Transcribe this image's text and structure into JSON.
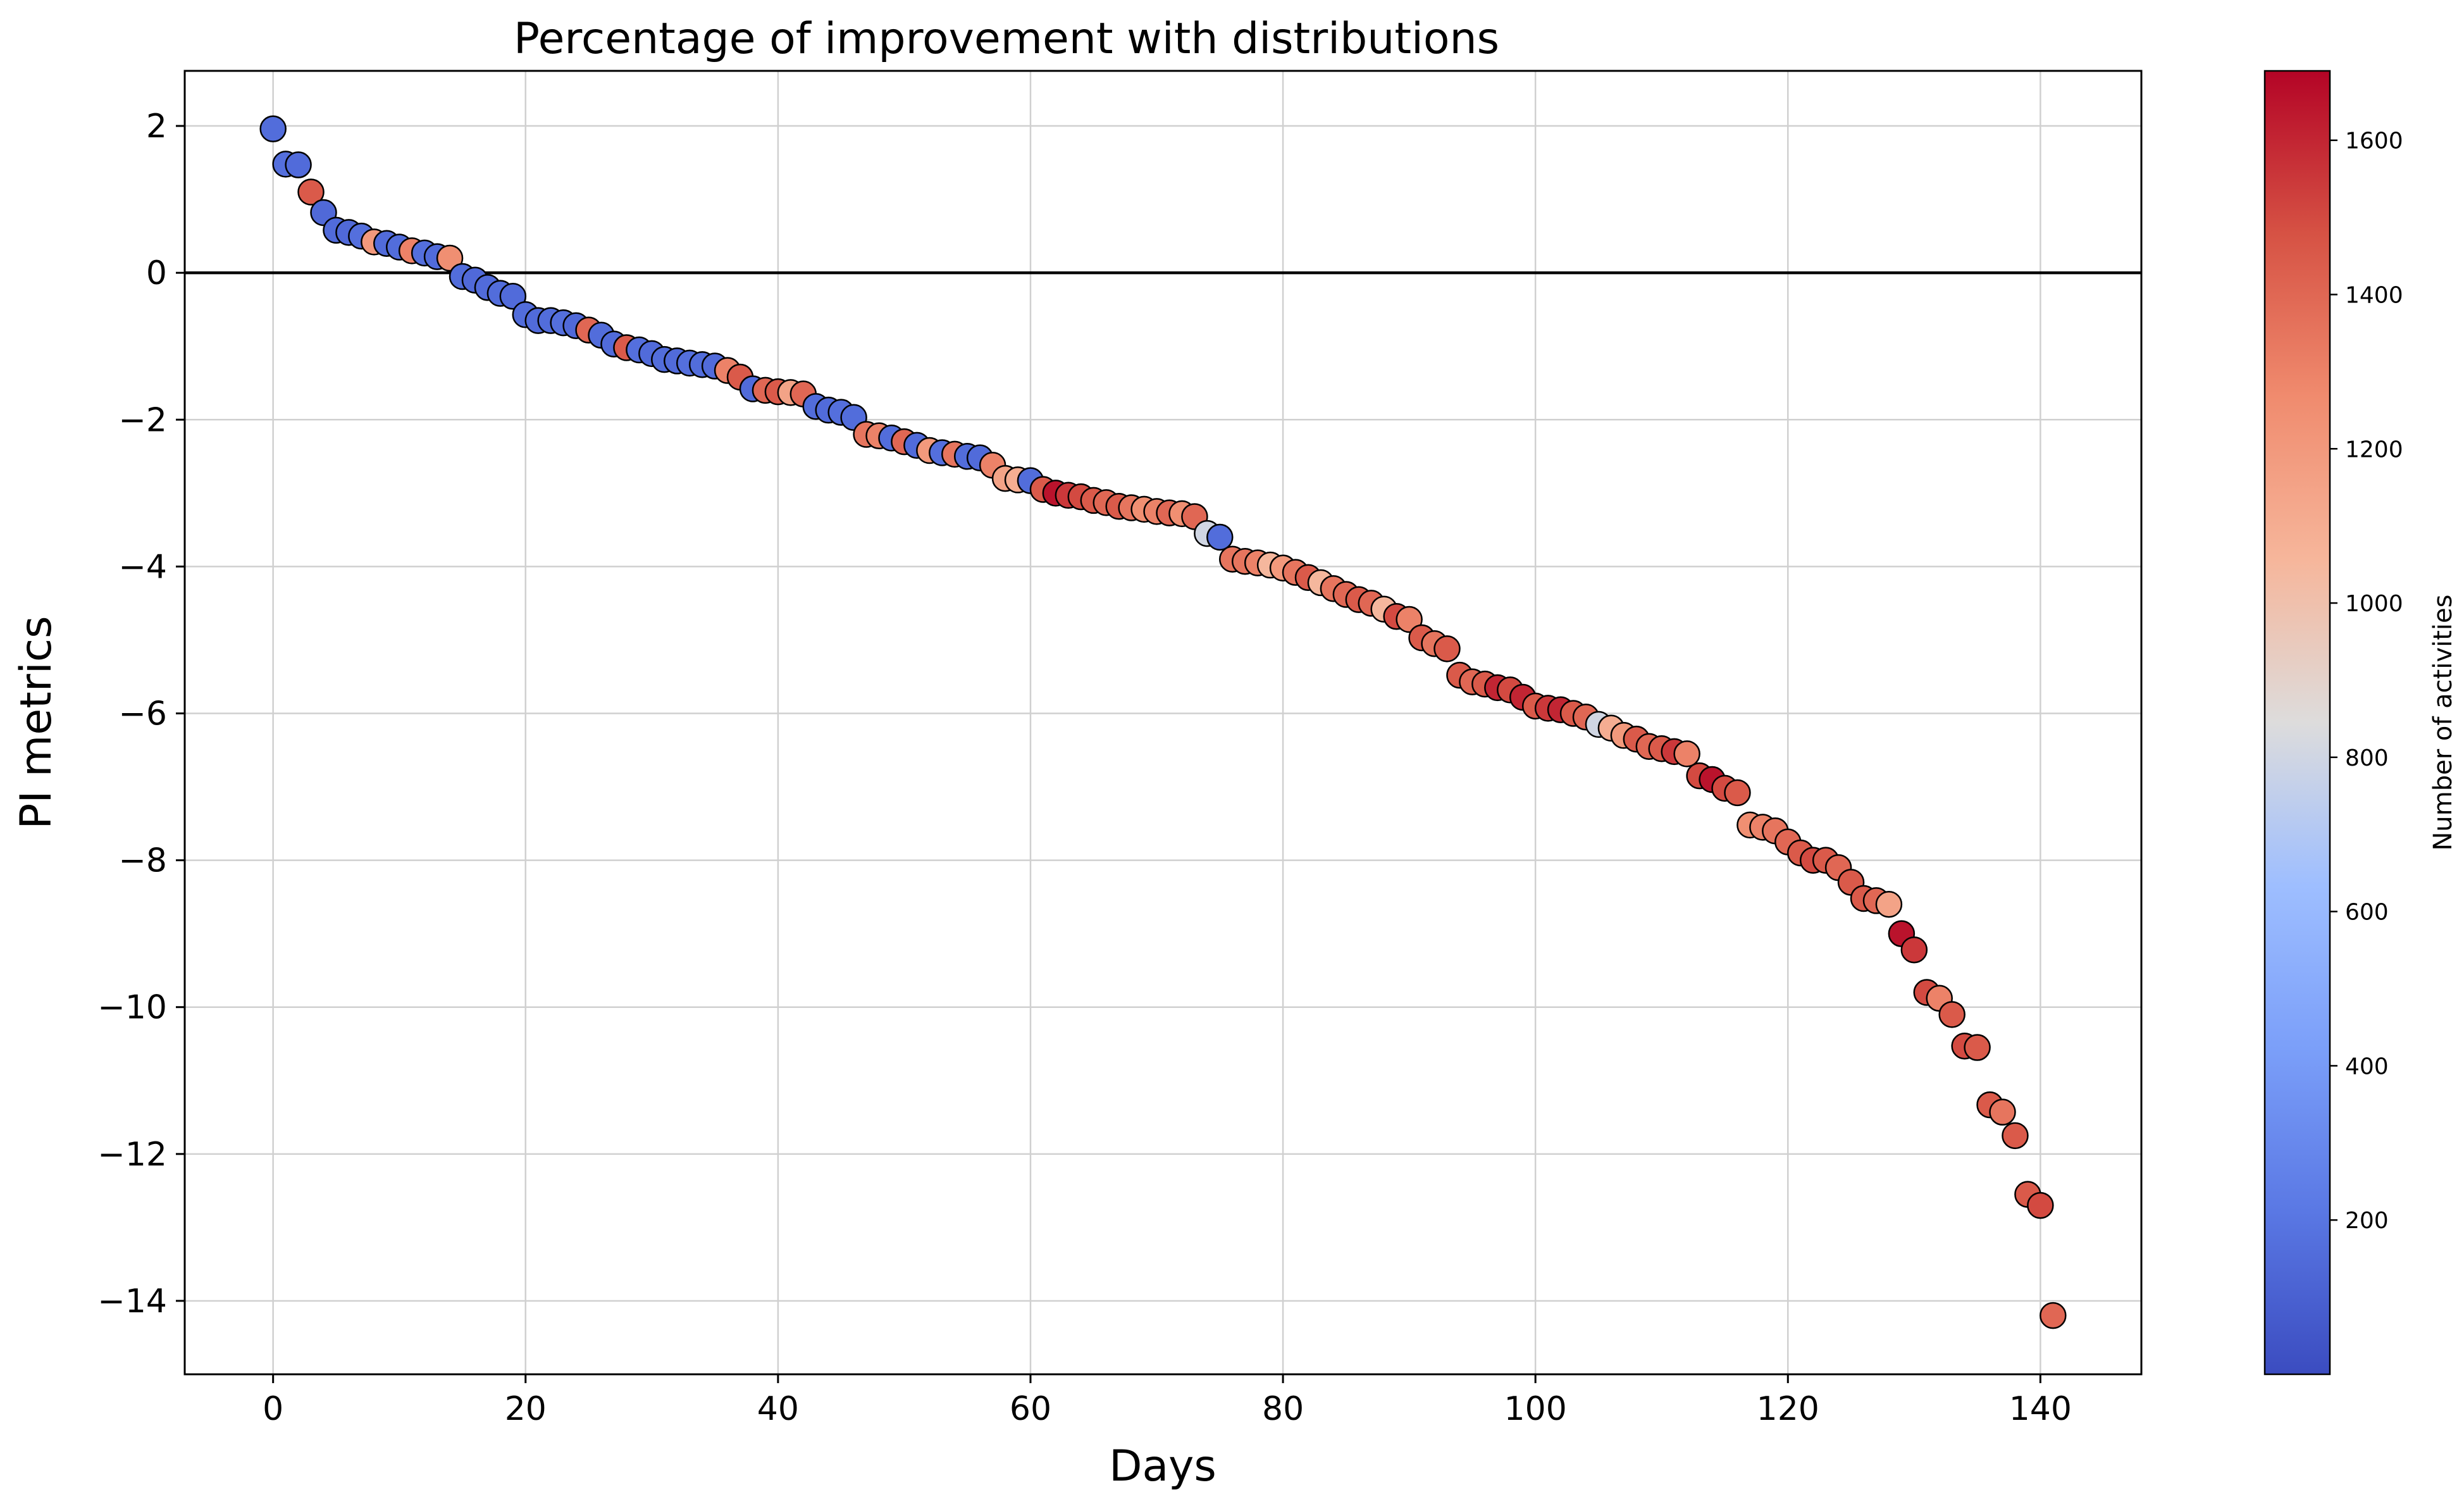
{
  "chart_data": {
    "type": "scatter",
    "title": "Percentage of improvement with distributions",
    "xlabel": "Days",
    "ylabel": "PI metrics",
    "xlim": [
      -7,
      148
    ],
    "ylim": [
      -15,
      2.75
    ],
    "xticks": [
      0,
      20,
      40,
      60,
      80,
      100,
      120,
      140
    ],
    "yticks": [
      2,
      0,
      -2,
      -4,
      -6,
      -8,
      -10,
      -12,
      -14
    ],
    "xtick_labels": [
      "0",
      "20",
      "40",
      "60",
      "80",
      "100",
      "120",
      "140"
    ],
    "ytick_labels": [
      "2",
      "0",
      "−2",
      "−4",
      "−6",
      "−8",
      "−10",
      "−12",
      "−14"
    ],
    "grid": true,
    "reference_line_y": 0,
    "colormap": "coolwarm",
    "colorbar": {
      "label": "Number of activities",
      "range": [
        0,
        1690
      ],
      "ticks": [
        200,
        400,
        600,
        800,
        1000,
        1200,
        1400,
        1600
      ],
      "tick_labels": [
        "200",
        "400",
        "600",
        "800",
        "1000",
        "1200",
        "1400",
        "1600"
      ]
    },
    "points": [
      [
        0,
        1.96,
        160
      ],
      [
        1,
        1.48,
        170
      ],
      [
        2,
        1.47,
        150
      ],
      [
        3,
        1.1,
        1450
      ],
      [
        4,
        0.82,
        140
      ],
      [
        5,
        0.58,
        150
      ],
      [
        6,
        0.55,
        140
      ],
      [
        7,
        0.5,
        170
      ],
      [
        8,
        0.42,
        1200
      ],
      [
        9,
        0.4,
        150
      ],
      [
        10,
        0.35,
        160
      ],
      [
        11,
        0.3,
        1300
      ],
      [
        12,
        0.27,
        170
      ],
      [
        13,
        0.22,
        150
      ],
      [
        14,
        0.2,
        1250
      ],
      [
        15,
        -0.05,
        160
      ],
      [
        16,
        -0.1,
        140
      ],
      [
        17,
        -0.2,
        150
      ],
      [
        18,
        -0.28,
        160
      ],
      [
        19,
        -0.32,
        150
      ],
      [
        20,
        -0.57,
        160
      ],
      [
        21,
        -0.65,
        150
      ],
      [
        22,
        -0.65,
        160
      ],
      [
        23,
        -0.68,
        170
      ],
      [
        24,
        -0.72,
        140
      ],
      [
        25,
        -0.78,
        1400
      ],
      [
        26,
        -0.85,
        160
      ],
      [
        27,
        -0.97,
        150
      ],
      [
        28,
        -1.02,
        1450
      ],
      [
        29,
        -1.05,
        170
      ],
      [
        30,
        -1.1,
        150
      ],
      [
        31,
        -1.18,
        160
      ],
      [
        32,
        -1.2,
        150
      ],
      [
        33,
        -1.23,
        170
      ],
      [
        34,
        -1.25,
        160
      ],
      [
        35,
        -1.27,
        150
      ],
      [
        36,
        -1.33,
        1300
      ],
      [
        37,
        -1.42,
        1450
      ],
      [
        38,
        -1.58,
        150
      ],
      [
        39,
        -1.6,
        1400
      ],
      [
        40,
        -1.62,
        1450
      ],
      [
        41,
        -1.63,
        1150
      ],
      [
        42,
        -1.65,
        1400
      ],
      [
        43,
        -1.82,
        160
      ],
      [
        44,
        -1.87,
        150
      ],
      [
        45,
        -1.9,
        170
      ],
      [
        46,
        -1.97,
        160
      ],
      [
        47,
        -2.2,
        1350
      ],
      [
        48,
        -2.22,
        1300
      ],
      [
        49,
        -2.25,
        160
      ],
      [
        50,
        -2.3,
        1400
      ],
      [
        51,
        -2.35,
        150
      ],
      [
        52,
        -2.42,
        1200
      ],
      [
        53,
        -2.45,
        170
      ],
      [
        54,
        -2.47,
        1350
      ],
      [
        55,
        -2.5,
        160
      ],
      [
        56,
        -2.52,
        150
      ],
      [
        57,
        -2.62,
        1300
      ],
      [
        58,
        -2.8,
        1150
      ],
      [
        59,
        -2.82,
        1100
      ],
      [
        60,
        -2.83,
        160
      ],
      [
        61,
        -2.95,
        1450
      ],
      [
        62,
        -3.0,
        1650
      ],
      [
        63,
        -3.03,
        1550
      ],
      [
        64,
        -3.05,
        1500
      ],
      [
        65,
        -3.1,
        1450
      ],
      [
        66,
        -3.13,
        1400
      ],
      [
        67,
        -3.18,
        1450
      ],
      [
        68,
        -3.2,
        1350
      ],
      [
        69,
        -3.22,
        1250
      ],
      [
        70,
        -3.25,
        1300
      ],
      [
        71,
        -3.27,
        1400
      ],
      [
        72,
        -3.28,
        1250
      ],
      [
        73,
        -3.32,
        1400
      ],
      [
        74,
        -3.55,
        800
      ],
      [
        75,
        -3.6,
        160
      ],
      [
        76,
        -3.9,
        1350
      ],
      [
        77,
        -3.93,
        1350
      ],
      [
        78,
        -3.95,
        1300
      ],
      [
        79,
        -3.98,
        1050
      ],
      [
        80,
        -4.02,
        1200
      ],
      [
        81,
        -4.08,
        1350
      ],
      [
        82,
        -4.15,
        1450
      ],
      [
        83,
        -4.22,
        1050
      ],
      [
        84,
        -4.3,
        1350
      ],
      [
        85,
        -4.38,
        1400
      ],
      [
        86,
        -4.45,
        1450
      ],
      [
        87,
        -4.5,
        1400
      ],
      [
        88,
        -4.58,
        1050
      ],
      [
        89,
        -4.68,
        1500
      ],
      [
        90,
        -4.72,
        1300
      ],
      [
        91,
        -4.97,
        1450
      ],
      [
        92,
        -5.05,
        1350
      ],
      [
        93,
        -5.12,
        1450
      ],
      [
        94,
        -5.48,
        1450
      ],
      [
        95,
        -5.57,
        1400
      ],
      [
        96,
        -5.6,
        1450
      ],
      [
        97,
        -5.65,
        1600
      ],
      [
        98,
        -5.68,
        1500
      ],
      [
        99,
        -5.78,
        1600
      ],
      [
        100,
        -5.9,
        1450
      ],
      [
        101,
        -5.93,
        1550
      ],
      [
        102,
        -5.95,
        1600
      ],
      [
        103,
        -6.0,
        1450
      ],
      [
        104,
        -6.05,
        1400
      ],
      [
        105,
        -6.15,
        800
      ],
      [
        106,
        -6.2,
        1100
      ],
      [
        107,
        -6.3,
        1200
      ],
      [
        108,
        -6.35,
        1450
      ],
      [
        109,
        -6.45,
        1400
      ],
      [
        110,
        -6.48,
        1450
      ],
      [
        111,
        -6.52,
        1550
      ],
      [
        112,
        -6.55,
        1300
      ],
      [
        113,
        -6.85,
        1500
      ],
      [
        114,
        -6.9,
        1650
      ],
      [
        115,
        -7.02,
        1500
      ],
      [
        116,
        -7.08,
        1450
      ],
      [
        117,
        -7.52,
        1250
      ],
      [
        118,
        -7.55,
        1300
      ],
      [
        119,
        -7.6,
        1350
      ],
      [
        120,
        -7.75,
        1400
      ],
      [
        121,
        -7.9,
        1450
      ],
      [
        122,
        -8.0,
        1500
      ],
      [
        123,
        -8.0,
        1450
      ],
      [
        124,
        -8.1,
        1400
      ],
      [
        125,
        -8.3,
        1450
      ],
      [
        126,
        -8.52,
        1450
      ],
      [
        127,
        -8.55,
        1400
      ],
      [
        128,
        -8.6,
        1150
      ],
      [
        129,
        -9.0,
        1650
      ],
      [
        130,
        -9.22,
        1550
      ],
      [
        131,
        -9.8,
        1500
      ],
      [
        132,
        -9.88,
        1300
      ],
      [
        133,
        -10.1,
        1450
      ],
      [
        134,
        -10.53,
        1500
      ],
      [
        135,
        -10.55,
        1450
      ],
      [
        136,
        -11.33,
        1450
      ],
      [
        137,
        -11.43,
        1350
      ],
      [
        138,
        -11.75,
        1450
      ],
      [
        139,
        -12.55,
        1450
      ],
      [
        140,
        -12.7,
        1500
      ],
      [
        141,
        -14.2,
        1400
      ]
    ]
  }
}
